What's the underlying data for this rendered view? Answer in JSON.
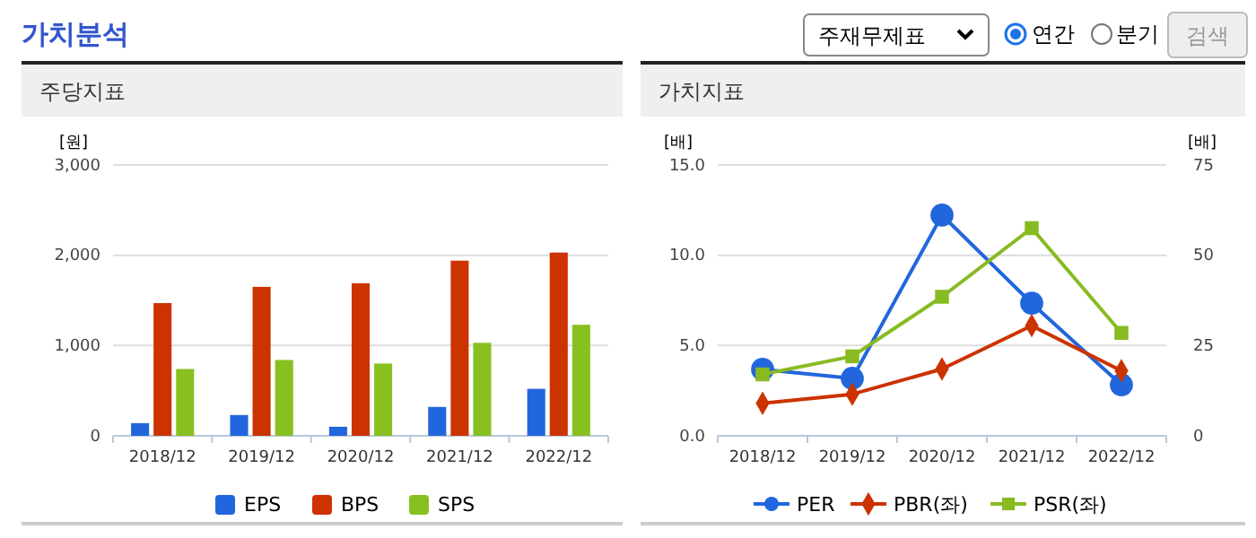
{
  "chart_data": [
    {
      "type": "other",
      "title": "가치분석",
      "annotations": [
        "주재무제표",
        "연간",
        "분기",
        "검색"
      ]
    },
    {
      "type": "bar",
      "title": "주당지표",
      "ylabel": "[원]",
      "categories": [
        "2018/12",
        "2019/12",
        "2020/12",
        "2021/12",
        "2022/12"
      ],
      "ylim": [
        0,
        3000
      ],
      "yticks": [
        0,
        {
          "value": 1000,
          "label": "1,000"
        },
        {
          "value": 2000,
          "label": "2,000"
        },
        {
          "value": 3000,
          "label": "3,000"
        }
      ],
      "grid": "y",
      "legend": "bottom",
      "series": [
        {
          "name": "EPS",
          "color": "#2266dd",
          "values": [
            140,
            230,
            100,
            320,
            520
          ]
        },
        {
          "name": "BPS",
          "color": "#cc3300",
          "values": [
            1470,
            1650,
            1690,
            1940,
            2030
          ]
        },
        {
          "name": "SPS",
          "color": "#88c020",
          "values": [
            740,
            840,
            800,
            1030,
            1230
          ]
        }
      ]
    },
    {
      "type": "line",
      "title": "가치지표",
      "ylabel": "[배]",
      "y2label": "[배]",
      "categories": [
        "2018/12",
        "2019/12",
        "2020/12",
        "2021/12",
        "2022/12"
      ],
      "ylim": [
        0,
        15
      ],
      "yticks": [
        {
          "value": 0,
          "label": "0.0"
        },
        {
          "value": 5,
          "label": "5.0"
        },
        {
          "value": 10,
          "label": "10.0"
        },
        {
          "value": 15,
          "label": "15.0"
        }
      ],
      "y2lim": [
        0,
        75
      ],
      "y2ticks": [
        0,
        25,
        50,
        75
      ],
      "grid": "y",
      "legend": "bottom",
      "series": [
        {
          "name": "PER",
          "color": "#2266dd",
          "marker": "circle",
          "axis": "y2",
          "values": [
            18.4,
            15.9,
            61.1,
            36.7,
            14.1
          ]
        },
        {
          "name": "PBR(좌)",
          "color": "#cc3300",
          "marker": "diamond",
          "values": [
            1.8,
            2.3,
            3.7,
            6.1,
            3.6
          ]
        },
        {
          "name": "PSR(좌)",
          "color": "#88bb22",
          "marker": "square",
          "values": [
            3.4,
            4.4,
            7.7,
            11.5,
            5.7
          ]
        }
      ]
    }
  ]
}
